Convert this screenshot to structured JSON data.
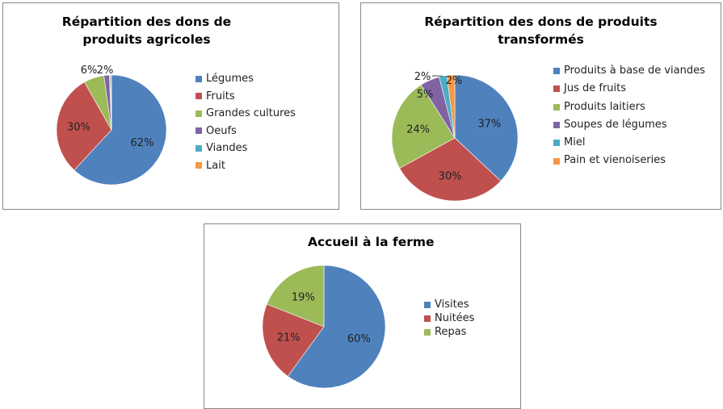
{
  "chart_data": [
    {
      "type": "pie",
      "title": "Répartition des dons de produits agricoles",
      "categories": [
        "Légumes",
        "Fruits",
        "Grandes cultures",
        "Oeufs",
        "Viandes",
        "Lait"
      ],
      "values": [
        62,
        30,
        6,
        1.6,
        0.3,
        0.3
      ],
      "labels": [
        "62%",
        "30%",
        "6%",
        "2%",
        "",
        ""
      ],
      "colors": [
        "#4F81BD",
        "#C0504D",
        "#9BBB59",
        "#8064A2",
        "#4BACC6",
        "#F79646"
      ],
      "legend": "right"
    },
    {
      "type": "pie",
      "title": "Répartition des dons de produits transformés",
      "categories": [
        "Produits à base de viandes",
        "Jus de fruits",
        "Produits laitiers",
        "Soupes de légumes",
        "Miel",
        "Pain et vienoiseries"
      ],
      "values": [
        37,
        30,
        24,
        5,
        2,
        2
      ],
      "labels": [
        "37%",
        "30%",
        "24%",
        "5%",
        "2%",
        "2%"
      ],
      "colors": [
        "#4F81BD",
        "#C0504D",
        "#9BBB59",
        "#8064A2",
        "#4BACC6",
        "#F79646"
      ],
      "legend": "right"
    },
    {
      "type": "pie",
      "title": "Accueil à la ferme",
      "categories": [
        "Visites",
        "Nuitées",
        "Repas"
      ],
      "values": [
        60,
        21,
        19
      ],
      "labels": [
        "60%",
        "21%",
        "19%"
      ],
      "colors": [
        "#4F81BD",
        "#C0504D",
        "#9BBB59"
      ],
      "legend": "right"
    }
  ]
}
